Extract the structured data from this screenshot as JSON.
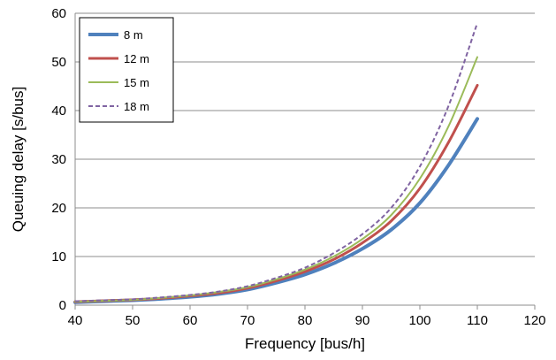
{
  "chart_data": {
    "type": "line",
    "title": "",
    "xlabel": "Frequency [bus/h]",
    "ylabel": "Queuing delay [s/bus]",
    "xlim": [
      40,
      120
    ],
    "ylim": [
      0,
      60
    ],
    "xticks": [
      "40",
      "50",
      "60",
      "70",
      "80",
      "90",
      "100",
      "110",
      "120"
    ],
    "yticks": [
      "0",
      "10",
      "20",
      "30",
      "40",
      "50",
      "60"
    ],
    "grid": "horizontal",
    "legend_position": "top-left",
    "x": [
      40,
      45,
      50,
      55,
      60,
      65,
      70,
      75,
      80,
      85,
      90,
      95,
      100,
      105,
      110
    ],
    "series": [
      {
        "name": "8 m",
        "color": "#4F81BD",
        "style": "solid-thick",
        "values": [
          0.6,
          0.8,
          1.0,
          1.3,
          1.7,
          2.3,
          3.2,
          4.6,
          6.3,
          8.6,
          11.6,
          15.5,
          21.0,
          28.8,
          38.3
        ]
      },
      {
        "name": "12 m",
        "color": "#C0504D",
        "style": "solid",
        "values": [
          0.7,
          0.9,
          1.1,
          1.4,
          1.9,
          2.5,
          3.5,
          5.0,
          6.9,
          9.4,
          12.8,
          17.3,
          24.0,
          33.5,
          45.2
        ]
      },
      {
        "name": "15 m",
        "color": "#9BBB59",
        "style": "solid-thin",
        "values": [
          0.7,
          0.9,
          1.1,
          1.5,
          2.0,
          2.7,
          3.7,
          5.3,
          7.3,
          10.0,
          13.6,
          18.5,
          26.0,
          36.8,
          51.0
        ]
      },
      {
        "name": "18 m",
        "color": "#8064A2",
        "style": "dashed",
        "values": [
          0.8,
          1.0,
          1.2,
          1.6,
          2.1,
          2.8,
          3.9,
          5.6,
          7.7,
          10.7,
          14.6,
          20.0,
          28.5,
          41.0,
          58.0
        ]
      }
    ]
  }
}
